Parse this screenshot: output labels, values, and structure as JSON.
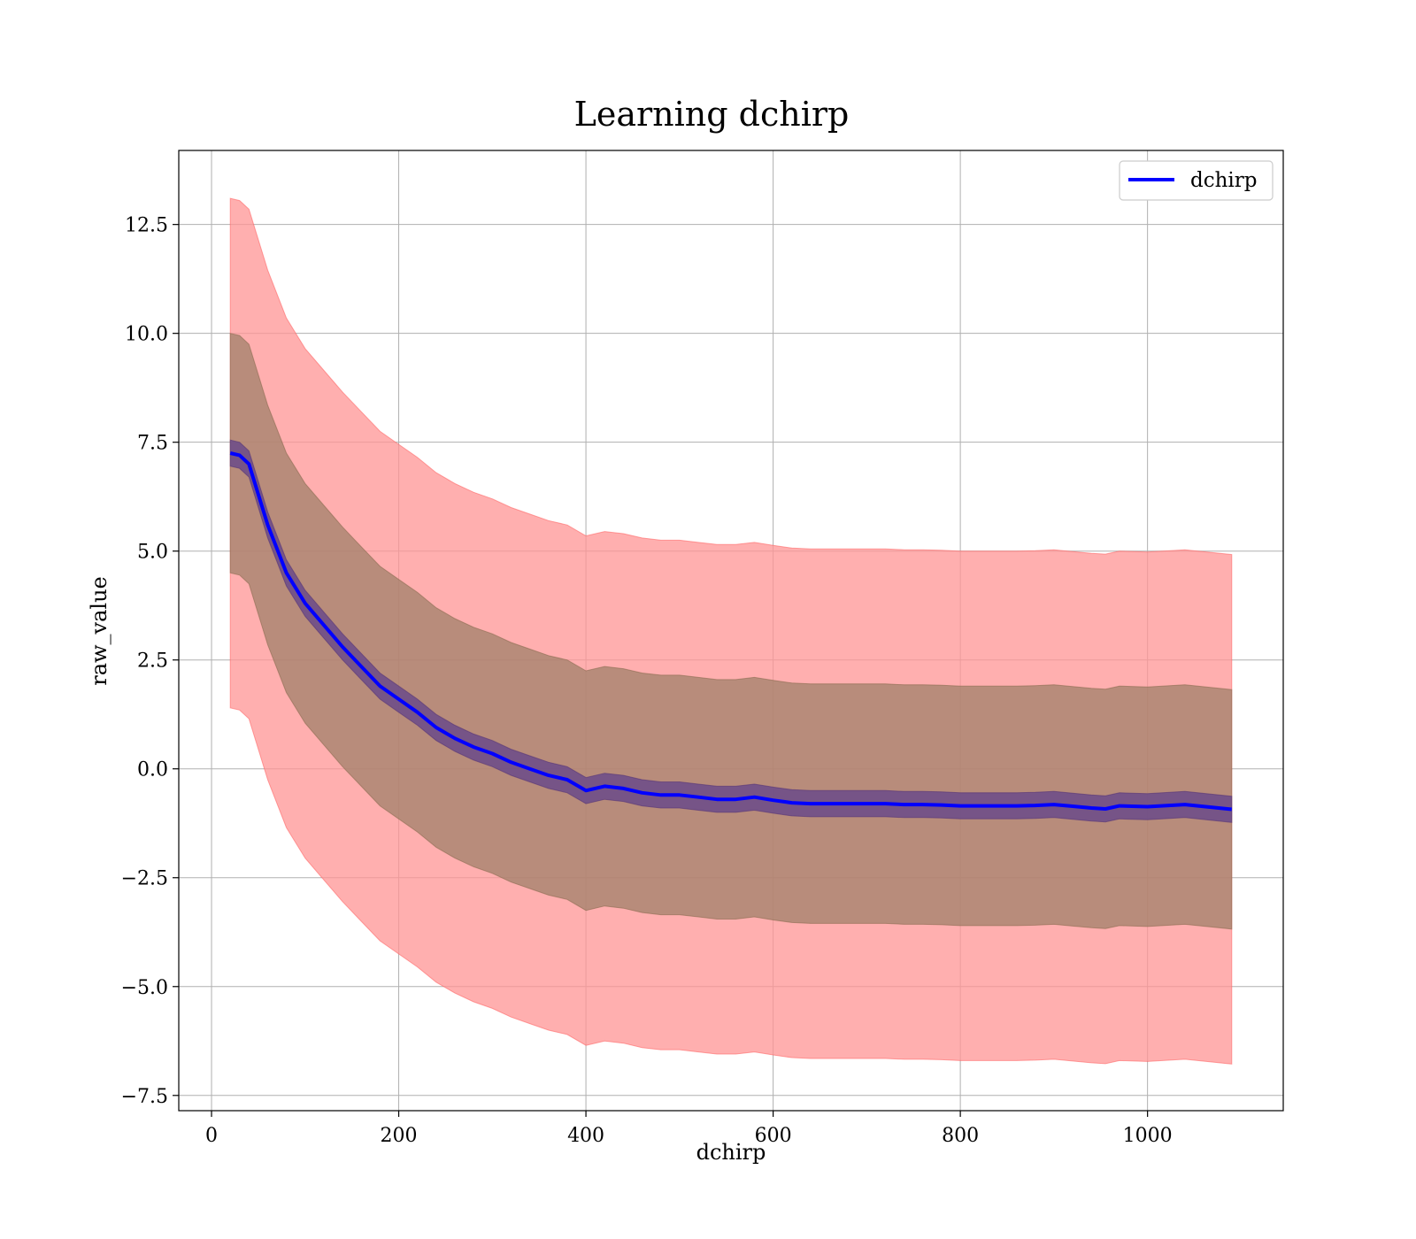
{
  "chart_data": {
    "type": "line",
    "title": "Learning dchirp",
    "xlabel": "dchirp",
    "ylabel": "raw_value",
    "xlim": [
      -35,
      1145
    ],
    "ylim": [
      -7.85,
      14.2
    ],
    "xticks": [
      0,
      200,
      400,
      600,
      800,
      1000
    ],
    "xtick_labels": [
      "0",
      "200",
      "400",
      "600",
      "800",
      "1000"
    ],
    "yticks": [
      -7.5,
      -5.0,
      -2.5,
      0.0,
      2.5,
      5.0,
      7.5,
      10.0,
      12.5
    ],
    "ytick_labels": [
      "−7.5",
      "−5.0",
      "−2.5",
      "0.0",
      "2.5",
      "5.0",
      "7.5",
      "10.0",
      "12.5"
    ],
    "grid": true,
    "legend": {
      "position": "top-right",
      "entries": [
        "dchirp"
      ]
    },
    "colors": {
      "line": "#0000ff",
      "band_outer": "#ff9494",
      "band_middle": "#a0806a",
      "band_inner": "#6a4a8a"
    },
    "series": [
      {
        "name": "dchirp",
        "x": [
          20,
          30,
          40,
          60,
          80,
          100,
          120,
          140,
          160,
          180,
          200,
          220,
          240,
          260,
          280,
          300,
          320,
          340,
          360,
          380,
          400,
          420,
          440,
          460,
          480,
          500,
          520,
          540,
          560,
          580,
          600,
          620,
          640,
          660,
          680,
          700,
          720,
          740,
          760,
          780,
          800,
          820,
          840,
          860,
          880,
          900,
          920,
          940,
          955,
          970,
          1000,
          1040,
          1090
        ],
        "y": [
          7.25,
          7.2,
          7.0,
          5.6,
          4.5,
          3.8,
          3.3,
          2.8,
          2.35,
          1.9,
          1.6,
          1.3,
          0.95,
          0.7,
          0.5,
          0.35,
          0.15,
          0.0,
          -0.15,
          -0.25,
          -0.5,
          -0.4,
          -0.45,
          -0.55,
          -0.6,
          -0.6,
          -0.65,
          -0.7,
          -0.7,
          -0.65,
          -0.72,
          -0.78,
          -0.8,
          -0.8,
          -0.8,
          -0.8,
          -0.8,
          -0.82,
          -0.82,
          -0.83,
          -0.85,
          -0.85,
          -0.85,
          -0.85,
          -0.84,
          -0.82,
          -0.86,
          -0.9,
          -0.92,
          -0.85,
          -0.87,
          -0.82,
          -0.93
        ],
        "band_inner_halfwidth": [
          0.3,
          0.3,
          0.3,
          0.3,
          0.3,
          0.3,
          0.3,
          0.3,
          0.3,
          0.3,
          0.3,
          0.3,
          0.3,
          0.3,
          0.3,
          0.3,
          0.3,
          0.3,
          0.3,
          0.3,
          0.3,
          0.3,
          0.3,
          0.3,
          0.3,
          0.3,
          0.3,
          0.3,
          0.3,
          0.3,
          0.3,
          0.3,
          0.3,
          0.3,
          0.3,
          0.3,
          0.3,
          0.3,
          0.3,
          0.3,
          0.3,
          0.3,
          0.3,
          0.3,
          0.3,
          0.3,
          0.3,
          0.3,
          0.3,
          0.3,
          0.3,
          0.3,
          0.3
        ],
        "band_middle_halfwidth": [
          2.75,
          2.75,
          2.75,
          2.75,
          2.75,
          2.75,
          2.75,
          2.75,
          2.75,
          2.75,
          2.75,
          2.75,
          2.75,
          2.75,
          2.75,
          2.75,
          2.75,
          2.75,
          2.75,
          2.75,
          2.75,
          2.75,
          2.75,
          2.75,
          2.75,
          2.75,
          2.75,
          2.75,
          2.75,
          2.75,
          2.75,
          2.75,
          2.75,
          2.75,
          2.75,
          2.75,
          2.75,
          2.75,
          2.75,
          2.75,
          2.75,
          2.75,
          2.75,
          2.75,
          2.75,
          2.75,
          2.75,
          2.75,
          2.75,
          2.75,
          2.75,
          2.75,
          2.75
        ],
        "band_outer_halfwidth": [
          5.85,
          5.85,
          5.85,
          5.85,
          5.85,
          5.85,
          5.85,
          5.85,
          5.85,
          5.85,
          5.85,
          5.85,
          5.85,
          5.85,
          5.85,
          5.85,
          5.85,
          5.85,
          5.85,
          5.85,
          5.85,
          5.85,
          5.85,
          5.85,
          5.85,
          5.85,
          5.85,
          5.85,
          5.85,
          5.85,
          5.85,
          5.85,
          5.85,
          5.85,
          5.85,
          5.85,
          5.85,
          5.85,
          5.85,
          5.85,
          5.85,
          5.85,
          5.85,
          5.85,
          5.85,
          5.85,
          5.85,
          5.85,
          5.85,
          5.85,
          5.85,
          5.85,
          5.85
        ]
      }
    ]
  }
}
